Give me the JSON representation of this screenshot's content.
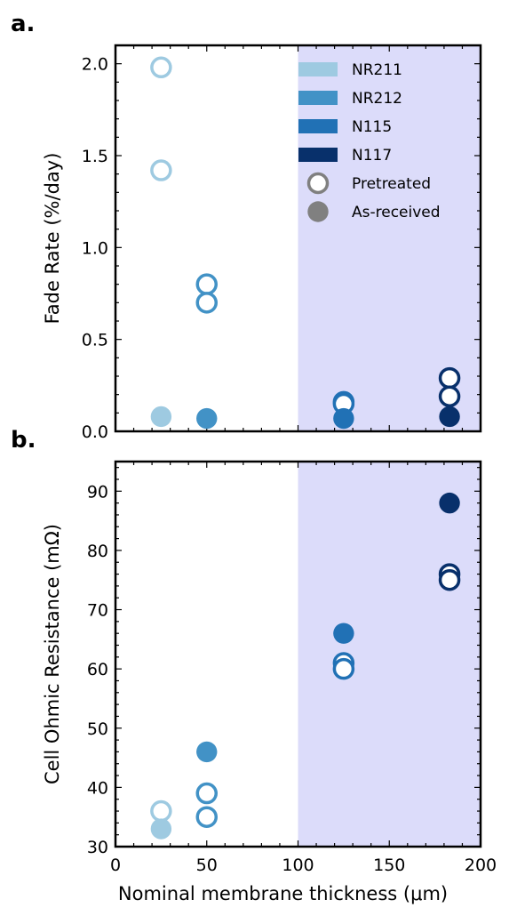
{
  "chart_data": [
    {
      "type": "scatter",
      "panel_label": "a.",
      "ylabel": "Fade Rate (%/day)",
      "xlabel": "",
      "xlim": [
        0,
        200
      ],
      "ylim": [
        0,
        2.1
      ],
      "xticks": [
        "0",
        "50",
        "100",
        "150",
        "200"
      ],
      "yticks": [
        "0.0",
        "0.5",
        "1.0",
        "1.5",
        "2.0"
      ],
      "shaded_region_x": [
        100,
        200
      ],
      "shaded_color": "#dcdcfa",
      "legend_position": "top-right",
      "legend": [
        {
          "label": "NR211",
          "kind": "patch",
          "color": "#9ecae1"
        },
        {
          "label": "NR212",
          "kind": "patch",
          "color": "#4292c6"
        },
        {
          "label": "N115",
          "kind": "patch",
          "color": "#2171b5"
        },
        {
          "label": "N117",
          "kind": "patch",
          "color": "#08306b"
        },
        {
          "label": "Pretreated",
          "kind": "open-marker",
          "color": "#808080"
        },
        {
          "label": "As-received",
          "kind": "filled-marker",
          "color": "#808080"
        }
      ],
      "series": [
        {
          "name": "NR211",
          "color": "#9ecae1",
          "pretreated": [
            [
              25,
              1.98
            ],
            [
              25,
              1.42
            ]
          ],
          "as_received": [
            [
              25,
              0.08
            ]
          ]
        },
        {
          "name": "NR212",
          "color": "#4292c6",
          "pretreated": [
            [
              50,
              0.8
            ],
            [
              50,
              0.7
            ]
          ],
          "as_received": [
            [
              50,
              0.07
            ]
          ]
        },
        {
          "name": "N115",
          "color": "#2171b5",
          "pretreated": [
            [
              125,
              0.16
            ],
            [
              125,
              0.15
            ]
          ],
          "as_received": [
            [
              125,
              0.07
            ]
          ]
        },
        {
          "name": "N117",
          "color": "#08306b",
          "pretreated": [
            [
              183,
              0.29
            ],
            [
              183,
              0.19
            ]
          ],
          "as_received": [
            [
              183,
              0.08
            ]
          ]
        }
      ]
    },
    {
      "type": "scatter",
      "panel_label": "b.",
      "ylabel": "Cell Ohmic Resistance (mΩ)",
      "xlabel": "Nominal membrane thickness (μm)",
      "xlim": [
        0,
        200
      ],
      "ylim": [
        30,
        95
      ],
      "xticks": [
        "0",
        "50",
        "100",
        "150",
        "200"
      ],
      "yticks": [
        "30",
        "40",
        "50",
        "60",
        "70",
        "80",
        "90"
      ],
      "shaded_region_x": [
        100,
        200
      ],
      "shaded_color": "#dcdcfa",
      "series": [
        {
          "name": "NR211",
          "color": "#9ecae1",
          "pretreated": [
            [
              25,
              36
            ]
          ],
          "as_received": [
            [
              25,
              33
            ]
          ]
        },
        {
          "name": "NR212",
          "color": "#4292c6",
          "pretreated": [
            [
              50,
              39
            ],
            [
              50,
              35
            ]
          ],
          "as_received": [
            [
              50,
              46
            ]
          ]
        },
        {
          "name": "N115",
          "color": "#2171b5",
          "pretreated": [
            [
              125,
              61
            ],
            [
              125,
              60
            ]
          ],
          "as_received": [
            [
              125,
              66
            ]
          ]
        },
        {
          "name": "N117",
          "color": "#08306b",
          "pretreated": [
            [
              183,
              76
            ],
            [
              183,
              75
            ]
          ],
          "as_received": [
            [
              183,
              88
            ]
          ]
        }
      ]
    }
  ]
}
